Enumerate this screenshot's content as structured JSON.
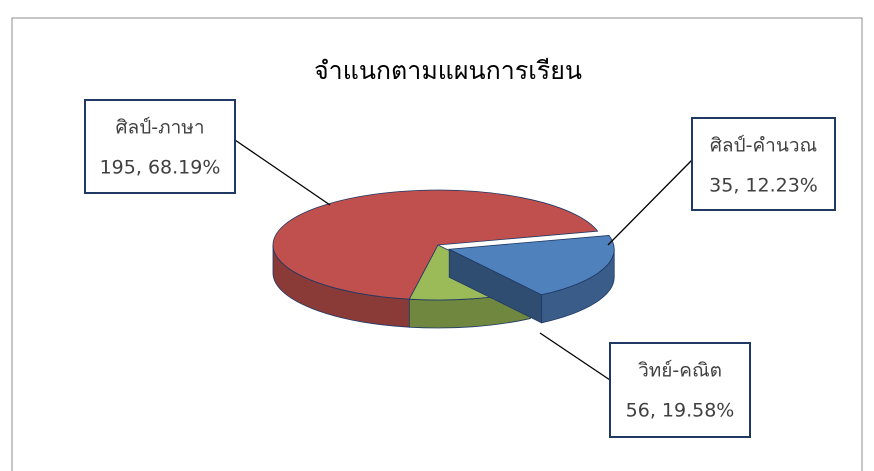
{
  "chart_data": {
    "type": "pie",
    "title": "จำแนกตามแผนการเรียน",
    "categories": [
      "ศิลป์-ภาษา",
      "วิทย์-คณิต",
      "ศิลป์-คำนวณ"
    ],
    "values": [
      195,
      56,
      35
    ],
    "value_labels": [
      "195, 68.19%",
      "56, 19.58%",
      "35, 12.23%"
    ],
    "colors": [
      "#c0504d",
      "#4f81bd",
      "#9bbb59"
    ]
  }
}
